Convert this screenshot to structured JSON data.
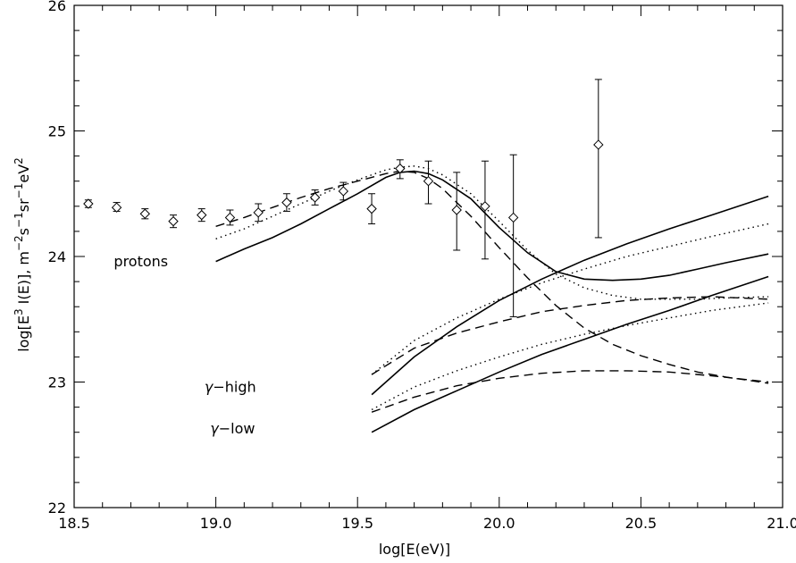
{
  "chart_data": {
    "type": "scatter",
    "title": "",
    "xlabel": "log[E(eV)]",
    "ylabel_parts": {
      "p1": "log[E",
      "p2": "3",
      "p3": " I(E)], m",
      "p4": "−2",
      "p5": "s",
      "p6": "−1",
      "p7": "sr",
      "p8": "−1",
      "p9": "eV",
      "p10": "2"
    },
    "xlim": [
      18.5,
      21.0
    ],
    "ylim": [
      22,
      26
    ],
    "xticks": [
      18.5,
      19.0,
      19.5,
      20.0,
      20.5,
      21.0
    ],
    "xtick_labels": [
      "18.5",
      "19.0",
      "19.5",
      "20.0",
      "20.5",
      "21.0"
    ],
    "yticks": [
      22,
      23,
      24,
      25,
      26
    ],
    "ytick_labels": [
      "22",
      "23",
      "24",
      "25",
      "26"
    ],
    "grid": false,
    "annotations": [
      {
        "id": "protons",
        "text": "protons",
        "x": 18.64,
        "y": 23.92
      },
      {
        "id": "gamma-high",
        "greek": "γ",
        "text": "−high",
        "x": 18.96,
        "y": 22.92
      },
      {
        "id": "gamma-low",
        "greek": "γ",
        "text": "−low",
        "x": 18.98,
        "y": 22.59
      }
    ],
    "data_points": {
      "name": "",
      "points": [
        {
          "x": 18.55,
          "y": 24.42,
          "ylo": 24.39,
          "yhi": 24.45
        },
        {
          "x": 18.65,
          "y": 24.39,
          "ylo": 24.36,
          "yhi": 24.43
        },
        {
          "x": 18.75,
          "y": 24.34,
          "ylo": 24.3,
          "yhi": 24.38
        },
        {
          "x": 18.85,
          "y": 24.28,
          "ylo": 24.23,
          "yhi": 24.33
        },
        {
          "x": 18.95,
          "y": 24.33,
          "ylo": 24.28,
          "yhi": 24.38
        },
        {
          "x": 19.05,
          "y": 24.31,
          "ylo": 24.25,
          "yhi": 24.37
        },
        {
          "x": 19.15,
          "y": 24.35,
          "ylo": 24.28,
          "yhi": 24.42
        },
        {
          "x": 19.25,
          "y": 24.43,
          "ylo": 24.36,
          "yhi": 24.5
        },
        {
          "x": 19.35,
          "y": 24.47,
          "ylo": 24.41,
          "yhi": 24.53
        },
        {
          "x": 19.45,
          "y": 24.52,
          "ylo": 24.45,
          "yhi": 24.59
        },
        {
          "x": 19.55,
          "y": 24.38,
          "ylo": 24.26,
          "yhi": 24.5
        },
        {
          "x": 19.65,
          "y": 24.7,
          "ylo": 24.62,
          "yhi": 24.77
        },
        {
          "x": 19.75,
          "y": 24.6,
          "ylo": 24.42,
          "yhi": 24.76
        },
        {
          "x": 19.85,
          "y": 24.37,
          "ylo": 24.05,
          "yhi": 24.67
        },
        {
          "x": 19.95,
          "y": 24.4,
          "ylo": 23.98,
          "yhi": 24.76
        },
        {
          "x": 20.05,
          "y": 24.31,
          "ylo": 23.52,
          "yhi": 24.81
        },
        {
          "x": 20.35,
          "y": 24.89,
          "ylo": 24.15,
          "yhi": 25.41
        }
      ]
    },
    "series": [
      {
        "style": "solid",
        "x": [
          19.0,
          19.1,
          19.2,
          19.3,
          19.4,
          19.5,
          19.6,
          19.65,
          19.7,
          19.75,
          19.8,
          19.9,
          20.0,
          20.1,
          20.2,
          20.3,
          20.4,
          20.5,
          20.6,
          20.7,
          20.8,
          20.95
        ],
        "y": [
          23.96,
          24.06,
          24.15,
          24.26,
          24.38,
          24.5,
          24.63,
          24.67,
          24.68,
          24.66,
          24.61,
          24.46,
          24.23,
          24.03,
          23.88,
          23.82,
          23.81,
          23.82,
          23.85,
          23.9,
          23.95,
          24.02
        ]
      },
      {
        "style": "dotted",
        "x": [
          19.0,
          19.1,
          19.2,
          19.3,
          19.4,
          19.5,
          19.6,
          19.65,
          19.7,
          19.75,
          19.8,
          19.9,
          20.0,
          20.1,
          20.2,
          20.3,
          20.4,
          20.5,
          20.6,
          20.7,
          20.8,
          20.95
        ],
        "y": [
          24.14,
          24.22,
          24.32,
          24.42,
          24.52,
          24.61,
          24.69,
          24.71,
          24.72,
          24.7,
          24.65,
          24.5,
          24.28,
          24.05,
          23.86,
          23.75,
          23.69,
          23.66,
          23.66,
          23.66,
          23.67,
          23.68
        ]
      },
      {
        "style": "dashed",
        "x": [
          19.0,
          19.1,
          19.2,
          19.3,
          19.4,
          19.5,
          19.6,
          19.65,
          19.7,
          19.75,
          19.8,
          19.9,
          20.0,
          20.1,
          20.2,
          20.3,
          20.4,
          20.5,
          20.6,
          20.7,
          20.8,
          20.95
        ],
        "y": [
          24.24,
          24.31,
          24.39,
          24.47,
          24.54,
          24.6,
          24.66,
          24.68,
          24.67,
          24.62,
          24.54,
          24.32,
          24.07,
          23.83,
          23.61,
          23.43,
          23.3,
          23.21,
          23.14,
          23.08,
          23.04,
          22.99
        ]
      },
      {
        "style": "solid",
        "x": [
          19.55,
          19.7,
          19.85,
          20.0,
          20.15,
          20.3,
          20.45,
          20.6,
          20.75,
          20.95
        ],
        "y": [
          22.9,
          23.2,
          23.44,
          23.65,
          23.82,
          23.97,
          24.1,
          24.22,
          24.33,
          24.48
        ]
      },
      {
        "style": "dotted",
        "x": [
          19.55,
          19.7,
          19.85,
          20.0,
          20.15,
          20.3,
          20.45,
          20.6,
          20.75,
          20.95
        ],
        "y": [
          23.06,
          23.33,
          23.51,
          23.66,
          23.79,
          23.9,
          24.0,
          24.08,
          24.16,
          24.26
        ]
      },
      {
        "style": "dashed",
        "x": [
          19.55,
          19.7,
          19.85,
          20.0,
          20.15,
          20.3,
          20.45,
          20.6,
          20.75,
          20.95
        ],
        "y": [
          23.06,
          23.27,
          23.39,
          23.48,
          23.56,
          23.61,
          23.65,
          23.67,
          23.68,
          23.66
        ]
      },
      {
        "style": "solid",
        "x": [
          19.55,
          19.7,
          19.85,
          20.0,
          20.15,
          20.3,
          20.45,
          20.6,
          20.75,
          20.95
        ],
        "y": [
          22.6,
          22.78,
          22.93,
          23.08,
          23.22,
          23.34,
          23.46,
          23.57,
          23.69,
          23.84
        ]
      },
      {
        "style": "dotted",
        "x": [
          19.55,
          19.7,
          19.85,
          20.0,
          20.15,
          20.3,
          20.45,
          20.6,
          20.75,
          20.95
        ],
        "y": [
          22.78,
          22.96,
          23.09,
          23.2,
          23.3,
          23.38,
          23.45,
          23.51,
          23.57,
          23.63
        ]
      },
      {
        "style": "dashed",
        "x": [
          19.55,
          19.7,
          19.85,
          20.0,
          20.15,
          20.3,
          20.45,
          20.6,
          20.75,
          20.95
        ],
        "y": [
          22.76,
          22.88,
          22.97,
          23.03,
          23.07,
          23.09,
          23.09,
          23.08,
          23.05,
          23.0
        ]
      }
    ]
  }
}
